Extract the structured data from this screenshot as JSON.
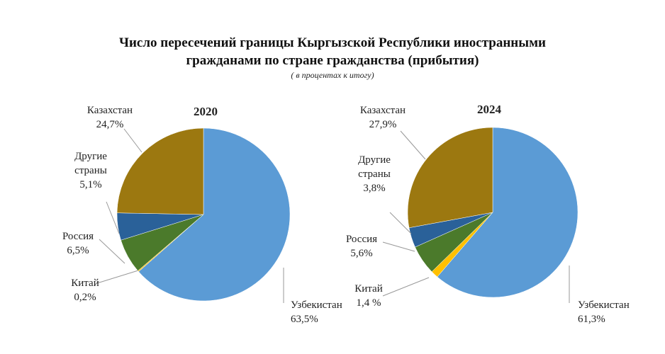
{
  "title_line1": "Число пересечений границы Кыргызской Республики иностранными",
  "title_line2": "гражданами по стране гражданства (прибытия)",
  "subtitle": "( в процентах  к итогу)",
  "chart_data": [
    {
      "type": "pie",
      "title": "2020",
      "slices": [
        {
          "label": "Узбекистан",
          "value": 63.5,
          "value_label": "63,5%",
          "color": "#5b9bd5"
        },
        {
          "label": "Китай",
          "value": 0.2,
          "value_label": "0,2%",
          "color": "#ffc000"
        },
        {
          "label": "Россия",
          "value": 6.5,
          "value_label": "6,5%",
          "color": "#4b7a2b"
        },
        {
          "label": "Другие страны",
          "value": 5.1,
          "value_label": "5,1%",
          "color": "#2a6199"
        },
        {
          "label": "Казахстан",
          "value": 24.7,
          "value_label": "24,7%",
          "color": "#9c7810"
        }
      ]
    },
    {
      "type": "pie",
      "title": "2024",
      "slices": [
        {
          "label": "Узбекистан",
          "value": 61.3,
          "value_label": "61,3%",
          "color": "#5b9bd5"
        },
        {
          "label": "Китай",
          "value": 1.4,
          "value_label": "1,4 %",
          "color": "#ffc000"
        },
        {
          "label": "Россия",
          "value": 5.6,
          "value_label": "5,6%",
          "color": "#4b7a2b"
        },
        {
          "label": "Другие страны",
          "value": 3.8,
          "value_label": "3,8%",
          "color": "#2a6199"
        },
        {
          "label": "Казахстан",
          "value": 27.9,
          "value_label": "27,9%",
          "color": "#9c7810"
        }
      ]
    }
  ]
}
